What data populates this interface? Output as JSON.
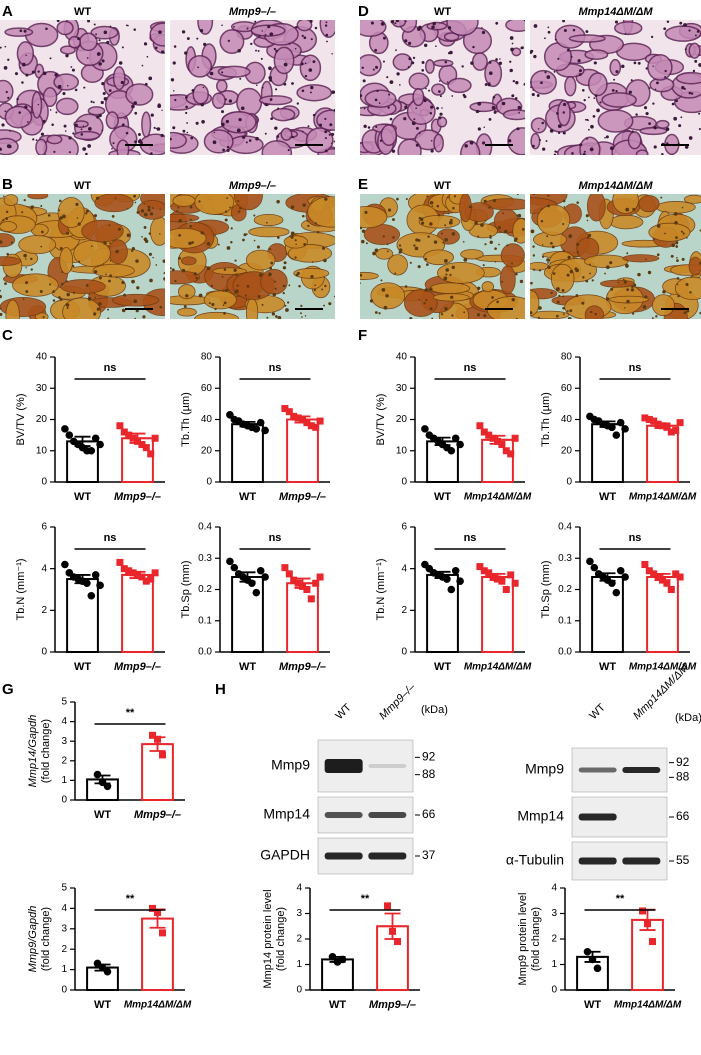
{
  "panels": {
    "letters": [
      "A",
      "B",
      "C",
      "D",
      "E",
      "F",
      "G",
      "H"
    ]
  },
  "images": [
    {
      "label": "WT"
    },
    {
      "label": "Mmp9–/–"
    },
    {
      "label": "WT"
    },
    {
      "label": "Mmp14ΔM/ΔM"
    },
    {
      "label": "WT"
    },
    {
      "label": "Mmp9–/–"
    },
    {
      "label": "WT"
    },
    {
      "label": "Mmp14ΔM/ΔM"
    }
  ],
  "blots": [
    {
      "lanes": [
        "WT",
        "Mmp9–/–"
      ],
      "unit": "(kDa)",
      "rows": [
        {
          "label": "Mmp9",
          "markers": [
            92,
            88
          ]
        },
        {
          "label": "Mmp14",
          "markers": [
            66
          ]
        },
        {
          "label": "GAPDH",
          "markers": [
            37
          ]
        }
      ]
    },
    {
      "lanes": [
        "WT",
        "Mmp14ΔM/ΔM"
      ],
      "unit": "(kDa)",
      "rows": [
        {
          "label": "Mmp9",
          "markers": [
            92,
            88
          ]
        },
        {
          "label": "Mmp14",
          "markers": [
            66
          ]
        },
        {
          "label": "α-Tubulin",
          "markers": [
            55
          ]
        }
      ]
    }
  ],
  "chart_data": [
    {
      "type": "bar",
      "ylabel": "BV/TV (%)",
      "categories": [
        "WT",
        "Mmp9–/–"
      ],
      "colors": [
        "#000000",
        "#e8262b"
      ],
      "markers": [
        "circle",
        "square"
      ],
      "values": [
        13,
        14
      ],
      "errors": [
        1.5,
        1.5
      ],
      "points": [
        [
          17,
          15,
          13,
          12,
          11,
          10,
          10,
          14,
          12
        ],
        [
          18,
          16,
          15,
          14,
          13,
          12,
          11,
          9,
          14
        ]
      ],
      "ylim": [
        0,
        40
      ],
      "yticks": [
        0,
        10,
        20,
        30,
        40
      ],
      "annotation": "ns"
    },
    {
      "type": "bar",
      "ylabel": "Tb.Th (µm)",
      "categories": [
        "WT",
        "Mmp9–/–"
      ],
      "colors": [
        "#000000",
        "#e8262b"
      ],
      "markers": [
        "circle",
        "square"
      ],
      "values": [
        37,
        40
      ],
      "errors": [
        1.5,
        2
      ],
      "points": [
        [
          43,
          40,
          39,
          37,
          36,
          35,
          34,
          38,
          33
        ],
        [
          47,
          45,
          42,
          41,
          40,
          38,
          36,
          35,
          39
        ]
      ],
      "ylim": [
        0,
        80
      ],
      "yticks": [
        0,
        20,
        40,
        60,
        80
      ],
      "annotation": "ns"
    },
    {
      "type": "bar",
      "ylabel": "Tb.N (mm⁻¹)",
      "categories": [
        "WT",
        "Mmp9–/–"
      ],
      "colors": [
        "#000000",
        "#e8262b"
      ],
      "markers": [
        "circle",
        "square"
      ],
      "values": [
        3.5,
        3.7
      ],
      "errors": [
        0.2,
        0.15
      ],
      "points": [
        [
          4.2,
          3.8,
          3.6,
          3.5,
          3.4,
          3.3,
          2.7,
          3.7,
          3.2
        ],
        [
          4.3,
          4.0,
          3.9,
          3.8,
          3.7,
          3.6,
          3.4,
          3.5,
          3.8
        ]
      ],
      "ylim": [
        0,
        6
      ],
      "yticks": [
        0,
        2,
        4,
        6
      ],
      "annotation": "ns"
    },
    {
      "type": "bar",
      "ylabel": "Tb.Sp (mm)",
      "categories": [
        "WT",
        "Mmp9–/–"
      ],
      "colors": [
        "#000000",
        "#e8262b"
      ],
      "markers": [
        "circle",
        "square"
      ],
      "values": [
        0.24,
        0.22
      ],
      "errors": [
        0.015,
        0.015
      ],
      "points": [
        [
          0.29,
          0.27,
          0.25,
          0.24,
          0.23,
          0.22,
          0.19,
          0.26,
          0.24
        ],
        [
          0.27,
          0.25,
          0.23,
          0.22,
          0.21,
          0.2,
          0.17,
          0.22,
          0.24
        ]
      ],
      "ylim": [
        0,
        0.4
      ],
      "yticks": [
        {
          "value": 0,
          "label": "0.0"
        },
        0.1,
        0.2,
        0.3,
        0.4
      ],
      "annotation": "ns"
    },
    {
      "type": "bar",
      "ylabel": "BV/TV (%)",
      "categories": [
        "WT",
        "Mmp14ΔM/ΔM"
      ],
      "colors": [
        "#000000",
        "#e8262b"
      ],
      "markers": [
        "circle",
        "square"
      ],
      "values": [
        13,
        13.5
      ],
      "errors": [
        1.2,
        1.3
      ],
      "points": [
        [
          17,
          15,
          14,
          13,
          12,
          11,
          10,
          14,
          12
        ],
        [
          18,
          16,
          15,
          14,
          13,
          12,
          10,
          9,
          14
        ]
      ],
      "ylim": [
        0,
        40
      ],
      "yticks": [
        0,
        10,
        20,
        30,
        40
      ],
      "annotation": "ns"
    },
    {
      "type": "bar",
      "ylabel": "Tb.Th (µm)",
      "categories": [
        "WT",
        "Mmp14ΔM/ΔM"
      ],
      "colors": [
        "#000000",
        "#e8262b"
      ],
      "markers": [
        "circle",
        "square"
      ],
      "values": [
        37,
        36
      ],
      "errors": [
        1.8,
        1.5
      ],
      "points": [
        [
          42,
          40,
          39,
          37,
          36,
          35,
          30,
          38,
          34
        ],
        [
          41,
          40,
          39,
          37,
          36,
          35,
          32,
          33,
          38
        ]
      ],
      "ylim": [
        0,
        80
      ],
      "yticks": [
        0,
        20,
        40,
        60,
        80
      ],
      "annotation": "ns"
    },
    {
      "type": "bar",
      "ylabel": "Tb.N (mm⁻¹)",
      "categories": [
        "WT",
        "Mmp14ΔM/ΔM"
      ],
      "colors": [
        "#000000",
        "#e8262b"
      ],
      "markers": [
        "circle",
        "square"
      ],
      "values": [
        3.7,
        3.6
      ],
      "errors": [
        0.15,
        0.15
      ],
      "points": [
        [
          4.2,
          4.0,
          3.8,
          3.7,
          3.6,
          3.5,
          3.0,
          3.9,
          3.4
        ],
        [
          4.1,
          3.9,
          3.8,
          3.6,
          3.5,
          3.4,
          3.0,
          3.7,
          3.3
        ]
      ],
      "ylim": [
        0,
        6
      ],
      "yticks": [
        0,
        2,
        4,
        6
      ],
      "annotation": "ns"
    },
    {
      "type": "bar",
      "ylabel": "Tb.Sp (mm)",
      "categories": [
        "WT",
        "Mmp14ΔM/ΔM"
      ],
      "colors": [
        "#000000",
        "#e8262b"
      ],
      "markers": [
        "circle",
        "square"
      ],
      "values": [
        0.24,
        0.24
      ],
      "errors": [
        0.012,
        0.01
      ],
      "points": [
        [
          0.29,
          0.27,
          0.25,
          0.24,
          0.23,
          0.22,
          0.19,
          0.26,
          0.24
        ],
        [
          0.28,
          0.26,
          0.25,
          0.24,
          0.23,
          0.22,
          0.2,
          0.25,
          0.24
        ]
      ],
      "ylim": [
        0,
        0.4
      ],
      "yticks": [
        {
          "value": 0,
          "label": "0.0"
        },
        0.1,
        0.2,
        0.3,
        0.4
      ],
      "annotation": "ns"
    },
    {
      "type": "bar",
      "ylabel": "Mmp14/Gapdh",
      "ylabel2": "(fold change)",
      "categories": [
        "WT",
        "Mmp9–/–"
      ],
      "colors": [
        "#000000",
        "#e8262b"
      ],
      "markers": [
        "circle",
        "square"
      ],
      "values": [
        1.05,
        2.85
      ],
      "errors": [
        0.2,
        0.35
      ],
      "points": [
        [
          1.3,
          0.9,
          0.7
        ],
        [
          3.3,
          3.1,
          2.3
        ]
      ],
      "ylim": [
        0,
        5
      ],
      "yticks": [
        0,
        1,
        2,
        3,
        4,
        5
      ],
      "annotation": "**"
    },
    {
      "type": "bar",
      "ylabel": "Mmp9/Gapdh",
      "ylabel2": "(fold change)",
      "categories": [
        "WT",
        "Mmp14ΔM/ΔM"
      ],
      "colors": [
        "#000000",
        "#e8262b"
      ],
      "markers": [
        "circle",
        "square"
      ],
      "values": [
        1.1,
        3.5
      ],
      "errors": [
        0.15,
        0.45
      ],
      "points": [
        [
          1.3,
          1.1,
          0.9
        ],
        [
          4.0,
          3.8,
          2.8
        ]
      ],
      "ylim": [
        0,
        5
      ],
      "yticks": [
        0,
        1,
        2,
        3,
        4,
        5
      ],
      "annotation": "**"
    },
    {
      "type": "bar",
      "ylabel": "Mmp14 protein level",
      "ylabel2": "(fold change)",
      "categories": [
        "WT",
        "Mmp9–/–"
      ],
      "colors": [
        "#000000",
        "#e8262b"
      ],
      "markers": [
        "circle",
        "square"
      ],
      "values": [
        1.2,
        2.5
      ],
      "errors": [
        0.1,
        0.5
      ],
      "points": [
        [
          1.3,
          1.1,
          1.2
        ],
        [
          3.3,
          2.3,
          1.9
        ]
      ],
      "ylim": [
        0,
        4
      ],
      "yticks": [
        0,
        1,
        2,
        3,
        4
      ],
      "annotation": "**"
    },
    {
      "type": "bar",
      "ylabel": "Mmp9 protein level",
      "ylabel2": "(fold change)",
      "categories": [
        "WT",
        "Mmp14ΔM/ΔM"
      ],
      "colors": [
        "#000000",
        "#e8262b"
      ],
      "markers": [
        "circle",
        "square"
      ],
      "values": [
        1.3,
        2.75
      ],
      "errors": [
        0.2,
        0.4
      ],
      "points": [
        [
          1.5,
          1.2,
          0.85
        ],
        [
          3.1,
          2.6,
          1.9
        ]
      ],
      "ylim": [
        0,
        4
      ],
      "yticks": [
        0,
        1,
        2,
        3,
        4
      ],
      "annotation": "**"
    }
  ]
}
